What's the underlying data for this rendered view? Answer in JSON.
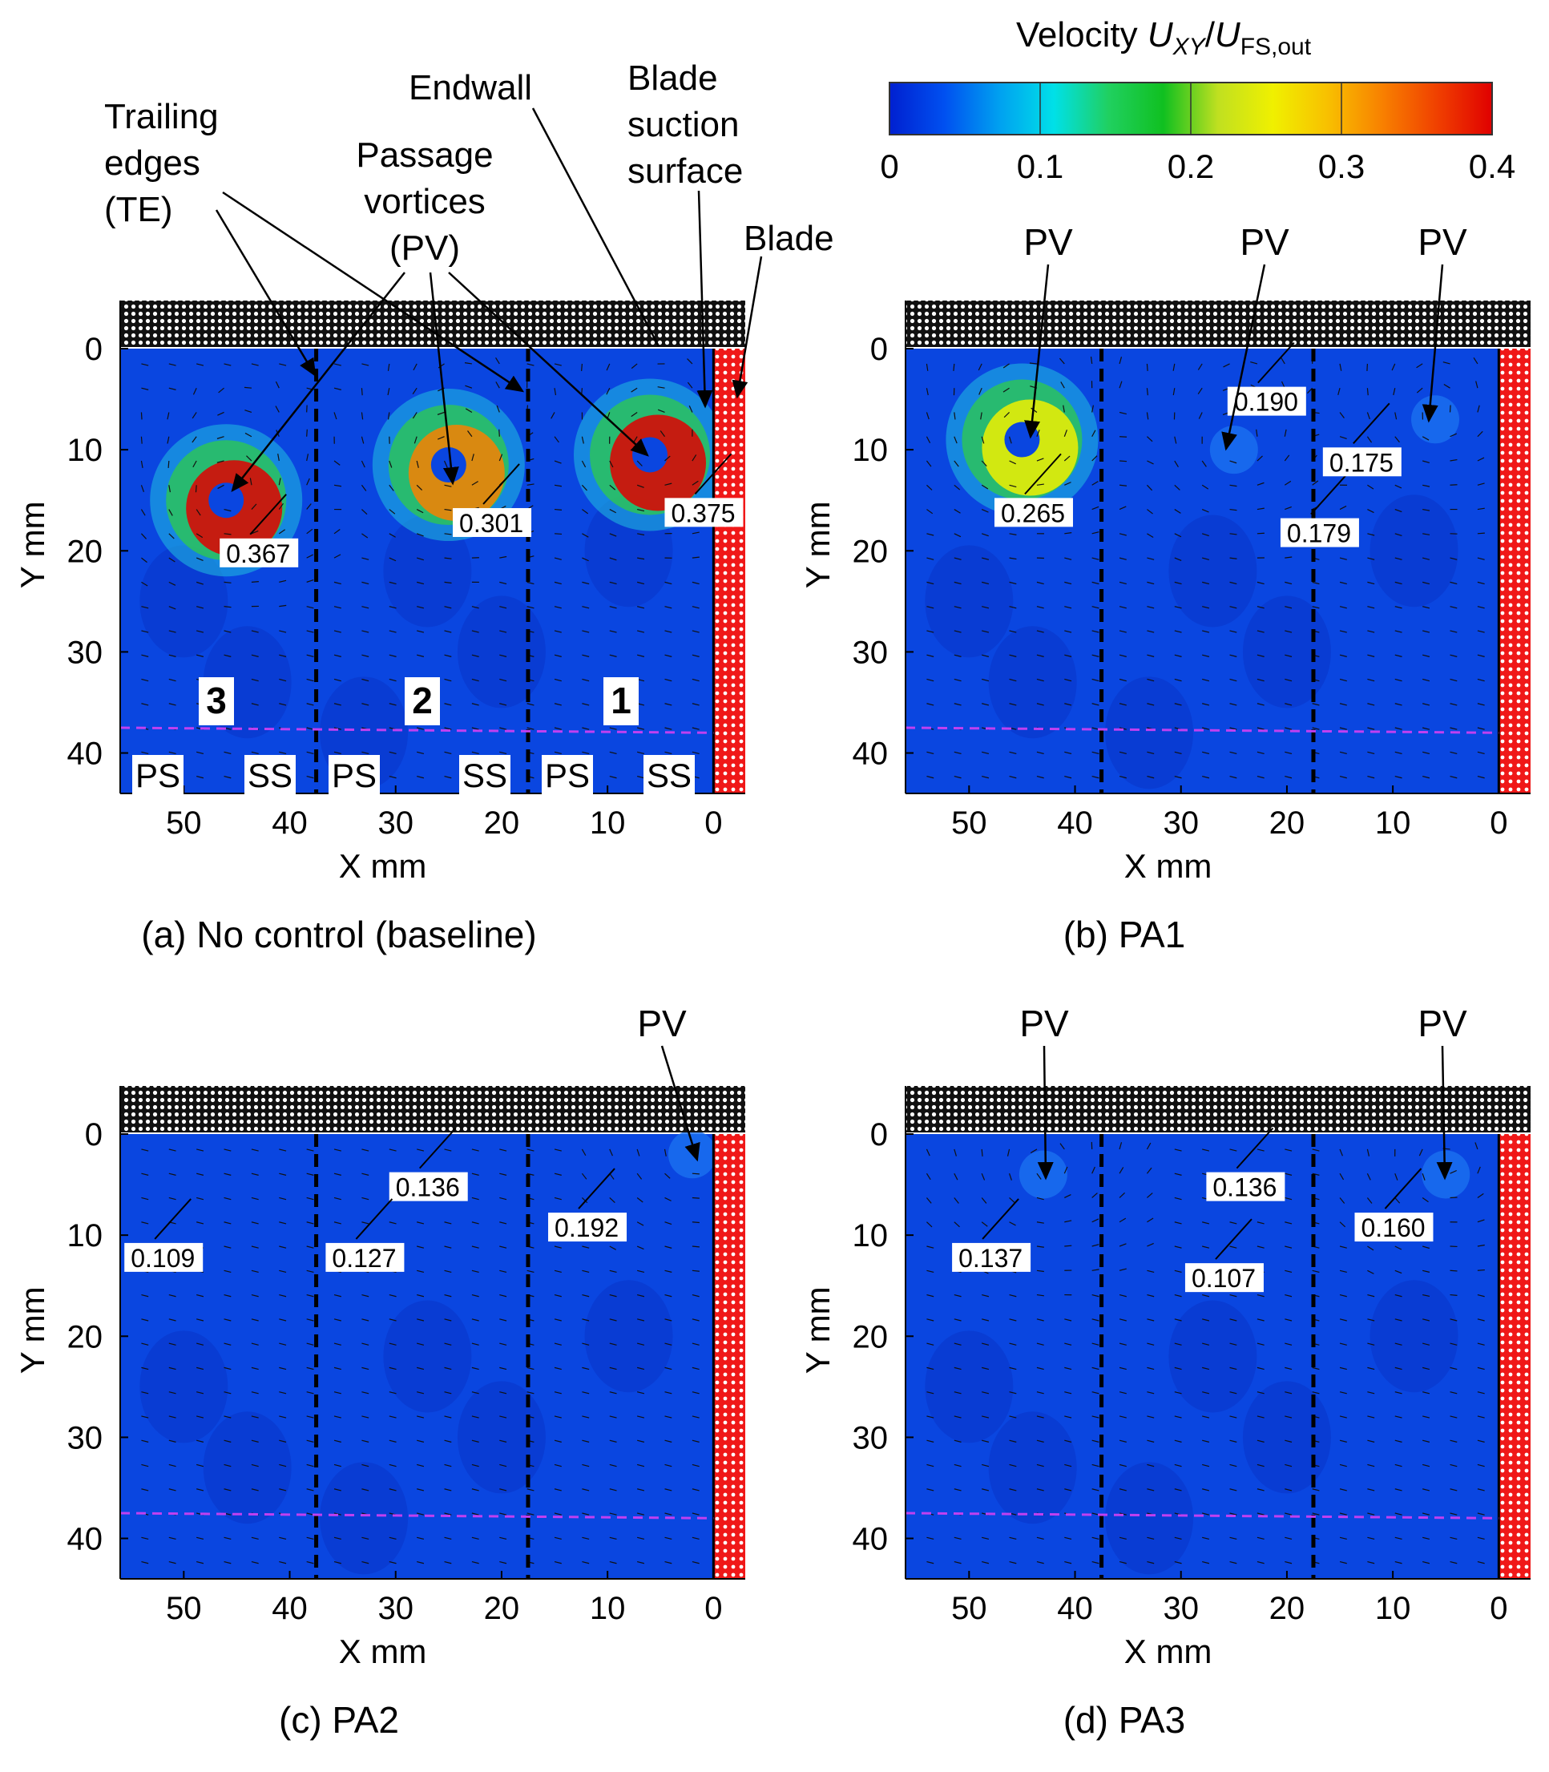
{
  "colorbar": {
    "title_prefix": "Velocity",
    "title_var": "U",
    "title_sub1": "XY",
    "title_sep": "/",
    "title_var2": "U",
    "title_sub2": "FS,out",
    "min": 0,
    "max": 0.4,
    "ticks": [
      "0",
      "0.1",
      "0.2",
      "0.3",
      "0.4"
    ],
    "colors": [
      "#0020d0",
      "#0050f0",
      "#00a0f0",
      "#00e0e8",
      "#20d060",
      "#10c020",
      "#c0e020",
      "#f0f000",
      "#f8c000",
      "#f88000",
      "#f04000",
      "#e00000"
    ]
  },
  "axes": {
    "xlabel": "X mm",
    "ylabel": "Y mm",
    "xticks": [
      "50",
      "40",
      "30",
      "20",
      "10",
      "0"
    ],
    "yticks": [
      "0",
      "10",
      "20",
      "30",
      "40"
    ]
  },
  "annotations": {
    "trailing_edges": [
      "Trailing",
      "edges",
      "(TE)"
    ],
    "passage_vortices": [
      "Passage",
      "vortices",
      "(PV)"
    ],
    "endwall": "Endwall",
    "blade_suction": [
      "Blade",
      "suction",
      "surface"
    ],
    "blade": "Blade",
    "pv": "PV",
    "passages": [
      "3",
      "2",
      "1"
    ],
    "surfaces": [
      "PS",
      "SS",
      "PS",
      "SS",
      "PS",
      "SS"
    ]
  },
  "chart_data": [
    {
      "type": "heatmap",
      "title": "(a) No control (baseline)",
      "xlabel": "X mm",
      "ylabel": "Y mm",
      "xlim": [
        56,
        -3
      ],
      "ylim": [
        0,
        44
      ],
      "peak_labels": [
        {
          "text": "0.367",
          "x": 46,
          "y": 16
        },
        {
          "text": "0.301",
          "x": 24,
          "y": 13
        },
        {
          "text": "0.375",
          "x": 4,
          "y": 12
        }
      ],
      "vortex_centers": [
        [
          46,
          15
        ],
        [
          25,
          11.5
        ],
        [
          6,
          10.5
        ]
      ]
    },
    {
      "type": "heatmap",
      "title": "(b) PA1",
      "xlabel": "X mm",
      "ylabel": "Y mm",
      "xlim": [
        56,
        -3
      ],
      "ylim": [
        0,
        44
      ],
      "peak_labels": [
        {
          "text": "0.265",
          "x": 47,
          "y": 12
        },
        {
          "text": "0.190",
          "x": 25,
          "y": 1
        },
        {
          "text": "0.179",
          "x": 20,
          "y": 14
        },
        {
          "text": "0.175",
          "x": 16,
          "y": 7
        }
      ],
      "vortex_centers": [
        [
          45,
          9
        ],
        [
          25,
          10
        ],
        [
          6,
          7
        ]
      ]
    },
    {
      "type": "heatmap",
      "title": "(c) PA2",
      "xlabel": "X mm",
      "ylabel": "Y mm",
      "xlim": [
        56,
        -3
      ],
      "ylim": [
        0,
        44
      ],
      "peak_labels": [
        {
          "text": "0.136",
          "x": 30,
          "y": 1
        },
        {
          "text": "0.109",
          "x": 55,
          "y": 8
        },
        {
          "text": "0.127",
          "x": 36,
          "y": 8
        },
        {
          "text": "0.192",
          "x": 15,
          "y": 5
        }
      ],
      "vortex_centers": [
        [
          2,
          2
        ]
      ]
    },
    {
      "type": "heatmap",
      "title": "(d) PA3",
      "xlabel": "X mm",
      "ylabel": "Y mm",
      "xlim": [
        56,
        -3
      ],
      "ylim": [
        0,
        44
      ],
      "peak_labels": [
        {
          "text": "0.136",
          "x": 27,
          "y": 1
        },
        {
          "text": "0.137",
          "x": 51,
          "y": 8
        },
        {
          "text": "0.107",
          "x": 29,
          "y": 10
        },
        {
          "text": "0.160",
          "x": 13,
          "y": 5
        }
      ],
      "vortex_centers": [
        [
          43,
          4
        ],
        [
          5,
          4
        ]
      ]
    }
  ]
}
